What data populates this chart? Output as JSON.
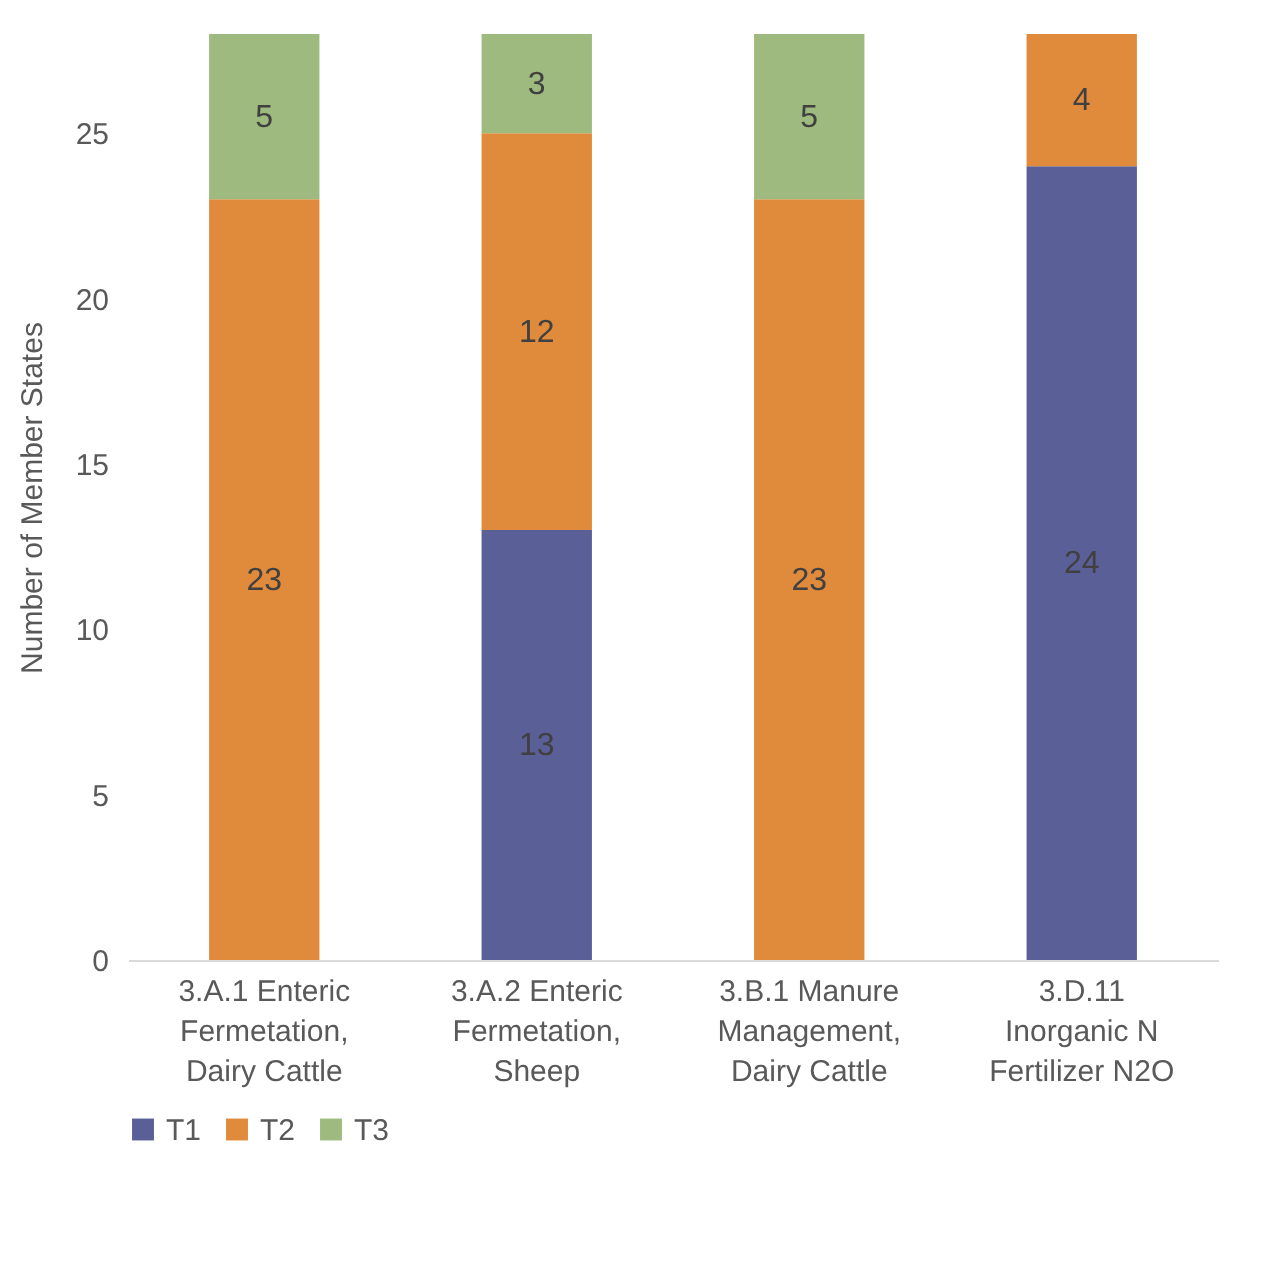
{
  "chart_data": {
    "type": "bar",
    "stacked": true,
    "ylabel": "Number of Member States",
    "categories": [
      "3.A.1 Enteric\nFermetation,\nDairy Cattle",
      "3.A.2 Enteric\nFermetation,\nSheep",
      "3.B.1 Manure\nManagement,\nDairy Cattle",
      "3.D.11\nInorganic N\nFertilizer N2O"
    ],
    "series": [
      {
        "name": "T1",
        "color": "#5b5f97",
        "values": [
          null,
          13,
          null,
          24
        ]
      },
      {
        "name": "T2",
        "color": "#e08a3c",
        "values": [
          23,
          12,
          23,
          4
        ]
      },
      {
        "name": "T3",
        "color": "#9fba7f",
        "values": [
          5,
          3,
          5,
          null
        ]
      }
    ],
    "ylim": [
      0,
      28
    ],
    "yticks": [
      0,
      5,
      10,
      15,
      20,
      25
    ],
    "grid": false,
    "legend": "bottom",
    "data_labels": true
  }
}
